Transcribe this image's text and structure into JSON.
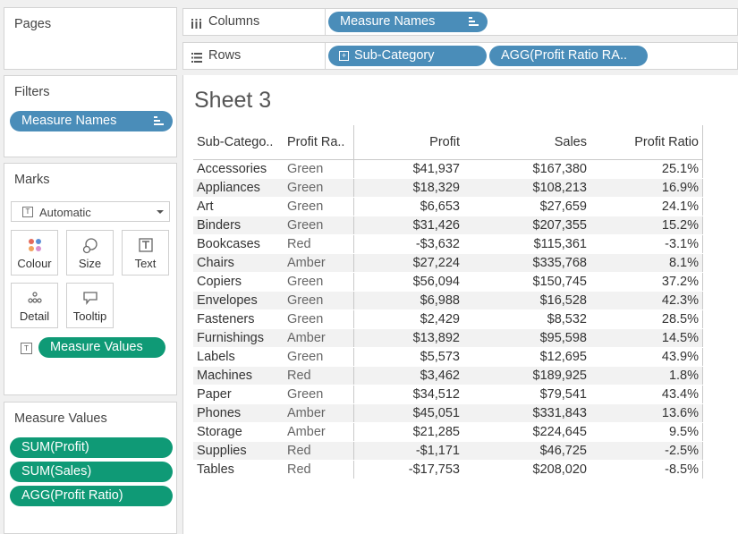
{
  "pages": {
    "title": "Pages"
  },
  "filters": {
    "title": "Filters",
    "pill": "Measure Names"
  },
  "marks": {
    "title": "Marks",
    "mark_type": "Automatic",
    "buttons": {
      "colour": "Colour",
      "size": "Size",
      "text": "Text",
      "detail": "Detail",
      "tooltip": "Tooltip"
    },
    "text_pill": "Measure Values"
  },
  "measure_values": {
    "title": "Measure Values",
    "pills": [
      "SUM(Profit)",
      "SUM(Sales)",
      "AGG(Profit Ratio)"
    ]
  },
  "shelves": {
    "columns_label": "Columns",
    "rows_label": "Rows",
    "columns_pill": "Measure Names",
    "rows_pill_1": "Sub-Category",
    "rows_pill_2": "AGG(Profit Ratio RA.."
  },
  "sheet": {
    "title": "Sheet 3",
    "headers": [
      "Sub-Catego..",
      "Profit Ra..",
      "Profit",
      "Sales",
      "Profit Ratio"
    ],
    "rows": [
      [
        "Accessories",
        "Green",
        "$41,937",
        "$167,380",
        "25.1%"
      ],
      [
        "Appliances",
        "Green",
        "$18,329",
        "$108,213",
        "16.9%"
      ],
      [
        "Art",
        "Green",
        "$6,653",
        "$27,659",
        "24.1%"
      ],
      [
        "Binders",
        "Green",
        "$31,426",
        "$207,355",
        "15.2%"
      ],
      [
        "Bookcases",
        "Red",
        "-$3,632",
        "$115,361",
        "-3.1%"
      ],
      [
        "Chairs",
        "Amber",
        "$27,224",
        "$335,768",
        "8.1%"
      ],
      [
        "Copiers",
        "Green",
        "$56,094",
        "$150,745",
        "37.2%"
      ],
      [
        "Envelopes",
        "Green",
        "$6,988",
        "$16,528",
        "42.3%"
      ],
      [
        "Fasteners",
        "Green",
        "$2,429",
        "$8,532",
        "28.5%"
      ],
      [
        "Furnishings",
        "Amber",
        "$13,892",
        "$95,598",
        "14.5%"
      ],
      [
        "Labels",
        "Green",
        "$5,573",
        "$12,695",
        "43.9%"
      ],
      [
        "Machines",
        "Red",
        "$3,462",
        "$189,925",
        "1.8%"
      ],
      [
        "Paper",
        "Green",
        "$34,512",
        "$79,541",
        "43.4%"
      ],
      [
        "Phones",
        "Amber",
        "$45,051",
        "$331,843",
        "13.6%"
      ],
      [
        "Storage",
        "Amber",
        "$21,285",
        "$224,645",
        "9.5%"
      ],
      [
        "Supplies",
        "Red",
        "-$1,171",
        "$46,725",
        "-2.5%"
      ],
      [
        "Tables",
        "Red",
        "-$17,753",
        "$208,020",
        "-8.5%"
      ]
    ]
  },
  "colors": {
    "pill_blue": "#4a8db9",
    "pill_green": "#0f9a76"
  },
  "icons": [
    "columns-icon",
    "rows-icon",
    "sort-icon",
    "expand-icon",
    "text-icon",
    "dropdown-chevron-icon",
    "colour-icon",
    "size-icon",
    "detail-icon",
    "tooltip-icon"
  ]
}
